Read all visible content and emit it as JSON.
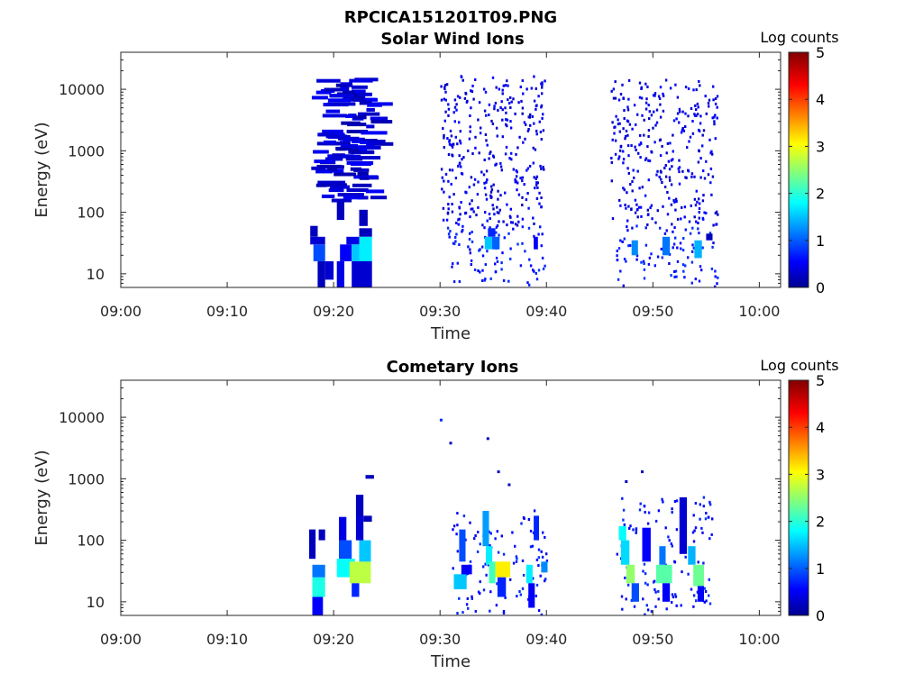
{
  "figure_title": "RPCICA151201T09.PNG",
  "chart_data": [
    {
      "type": "heatmap",
      "title": "Solar Wind Ions",
      "xlabel": "Time",
      "ylabel": "Energy (eV)",
      "x_ticks": [
        "09:00",
        "09:10",
        "09:20",
        "09:30",
        "09:40",
        "09:50",
        "10:00"
      ],
      "xlim_minutes": [
        0,
        62
      ],
      "y_ticks": [
        "10",
        "100",
        "1000",
        "10000"
      ],
      "y_scale": "log",
      "ylim": [
        6,
        40000
      ],
      "colorbar": {
        "label": "Log counts",
        "ticks": [
          "0",
          "1",
          "2",
          "3",
          "4",
          "5"
        ],
        "range": [
          0,
          5
        ],
        "colormap": "jet"
      },
      "grid": false,
      "blocks": [
        {
          "t0": 17.8,
          "t1": 19.2,
          "e0": 30,
          "e1": 40,
          "v": 0.4
        },
        {
          "t0": 17.8,
          "t1": 18.5,
          "e0": 40,
          "e1": 60,
          "v": 0.3
        },
        {
          "t0": 18.1,
          "t1": 19.2,
          "e0": 16,
          "e1": 30,
          "v": 1.0
        },
        {
          "t0": 18.5,
          "t1": 19.2,
          "e0": 6,
          "e1": 16,
          "v": 0.3
        },
        {
          "t0": 19.2,
          "t1": 20.0,
          "e0": 8,
          "e1": 16,
          "v": 0.4
        },
        {
          "t0": 20.3,
          "t1": 21.0,
          "e0": 6,
          "e1": 16,
          "v": 0.5
        },
        {
          "t0": 20.6,
          "t1": 21.7,
          "e0": 16,
          "e1": 30,
          "v": 0.6
        },
        {
          "t0": 21.2,
          "t1": 22.4,
          "e0": 30,
          "e1": 40,
          "v": 0.5
        },
        {
          "t0": 21.7,
          "t1": 23.0,
          "e0": 6,
          "e1": 16,
          "v": 0.4
        },
        {
          "t0": 21.7,
          "t1": 22.4,
          "e0": 16,
          "e1": 30,
          "v": 1.6
        },
        {
          "t0": 22.4,
          "t1": 23.6,
          "e0": 16,
          "e1": 40,
          "v": 1.8
        },
        {
          "t0": 22.4,
          "t1": 23.6,
          "e0": 6,
          "e1": 16,
          "v": 0.4
        },
        {
          "t0": 22.4,
          "t1": 23.6,
          "e0": 40,
          "e1": 55,
          "v": 0.3
        },
        {
          "t0": 22.4,
          "t1": 23.2,
          "e0": 60,
          "e1": 110,
          "v": 0.3
        },
        {
          "t0": 20.3,
          "t1": 21.0,
          "e0": 75,
          "e1": 150,
          "v": 0.3
        },
        {
          "t0": 34.2,
          "t1": 34.9,
          "e0": 25,
          "e1": 40,
          "v": 1.6
        },
        {
          "t0": 34.9,
          "t1": 35.6,
          "e0": 25,
          "e1": 40,
          "v": 1.1
        },
        {
          "t0": 34.5,
          "t1": 35.2,
          "e0": 40,
          "e1": 55,
          "v": 0.8
        },
        {
          "t0": 38.8,
          "t1": 39.2,
          "e0": 25,
          "e1": 40,
          "v": 0.6
        },
        {
          "t0": 48.0,
          "t1": 48.6,
          "e0": 20,
          "e1": 35,
          "v": 1.3
        },
        {
          "t0": 50.9,
          "t1": 51.6,
          "e0": 20,
          "e1": 40,
          "v": 1.2
        },
        {
          "t0": 53.9,
          "t1": 54.6,
          "e0": 18,
          "e1": 35,
          "v": 1.5
        },
        {
          "t0": 55.0,
          "t1": 55.6,
          "e0": 35,
          "e1": 45,
          "v": 0.3
        }
      ],
      "scatter_regions": [
        {
          "t0": 17.8,
          "t1": 23.6,
          "e0": 150,
          "e1": 15000,
          "n": 110,
          "v": 0.2,
          "w": 0.75,
          "dense": true
        },
        {
          "t0": 30.0,
          "t1": 39.8,
          "e0": 60,
          "e1": 16000,
          "n": 330,
          "v": 0.3,
          "w": 0.2,
          "dense": false
        },
        {
          "t0": 46.0,
          "t1": 56.0,
          "e0": 60,
          "e1": 14000,
          "n": 310,
          "v": 0.3,
          "w": 0.2,
          "dense": false
        },
        {
          "t0": 30.5,
          "t1": 39.8,
          "e0": 6,
          "e1": 60,
          "n": 90,
          "v": 0.5,
          "w": 0.2,
          "dense": false
        },
        {
          "t0": 46.5,
          "t1": 56.0,
          "e0": 6,
          "e1": 60,
          "n": 90,
          "v": 0.5,
          "w": 0.2,
          "dense": false
        }
      ]
    },
    {
      "type": "heatmap",
      "title": "Cometary Ions",
      "xlabel": "Time",
      "ylabel": "Energy (eV)",
      "x_ticks": [
        "09:00",
        "09:10",
        "09:20",
        "09:30",
        "09:40",
        "09:50",
        "10:00"
      ],
      "xlim_minutes": [
        0,
        62
      ],
      "y_ticks": [
        "10",
        "100",
        "1000",
        "10000"
      ],
      "y_scale": "log",
      "ylim": [
        6,
        40000
      ],
      "colorbar": {
        "label": "Log counts",
        "ticks": [
          "0",
          "1",
          "2",
          "3",
          "4",
          "5"
        ],
        "range": [
          0,
          5
        ],
        "colormap": "jet"
      },
      "grid": false,
      "blocks": [
        {
          "t0": 18.0,
          "t1": 19.0,
          "e0": 6,
          "e1": 12,
          "v": 0.6
        },
        {
          "t0": 18.0,
          "t1": 19.2,
          "e0": 12,
          "e1": 25,
          "v": 2.0
        },
        {
          "t0": 18.0,
          "t1": 19.2,
          "e0": 25,
          "e1": 40,
          "v": 1.2
        },
        {
          "t0": 17.7,
          "t1": 18.3,
          "e0": 50,
          "e1": 150,
          "v": 0.3
        },
        {
          "t0": 18.6,
          "t1": 19.2,
          "e0": 100,
          "e1": 150,
          "v": 0.3
        },
        {
          "t0": 20.3,
          "t1": 22.0,
          "e0": 25,
          "e1": 50,
          "v": 1.9
        },
        {
          "t0": 20.5,
          "t1": 21.7,
          "e0": 50,
          "e1": 100,
          "v": 1.0
        },
        {
          "t0": 20.5,
          "t1": 21.2,
          "e0": 100,
          "e1": 240,
          "v": 0.5
        },
        {
          "t0": 21.5,
          "t1": 23.5,
          "e0": 20,
          "e1": 45,
          "v": 2.8
        },
        {
          "t0": 21.7,
          "t1": 22.4,
          "e0": 12,
          "e1": 20,
          "v": 0.8
        },
        {
          "t0": 22.4,
          "t1": 23.5,
          "e0": 45,
          "e1": 100,
          "v": 1.6
        },
        {
          "t0": 22.1,
          "t1": 22.8,
          "e0": 100,
          "e1": 250,
          "v": 0.4
        },
        {
          "t0": 22.1,
          "t1": 22.8,
          "e0": 250,
          "e1": 550,
          "v": 0.3
        },
        {
          "t0": 22.8,
          "t1": 23.6,
          "e0": 200,
          "e1": 250,
          "v": 0.3
        },
        {
          "t0": 23.0,
          "t1": 23.8,
          "e0": 1000,
          "e1": 1150,
          "v": 0.3
        },
        {
          "t0": 31.3,
          "t1": 32.5,
          "e0": 16,
          "e1": 28,
          "v": 1.6
        },
        {
          "t0": 31.8,
          "t1": 32.4,
          "e0": 45,
          "e1": 150,
          "v": 1.0
        },
        {
          "t0": 32.0,
          "t1": 33.0,
          "e0": 28,
          "e1": 40,
          "v": 0.6
        },
        {
          "t0": 34.0,
          "t1": 34.6,
          "e0": 80,
          "e1": 300,
          "v": 1.4
        },
        {
          "t0": 34.3,
          "t1": 34.9,
          "e0": 40,
          "e1": 80,
          "v": 1.8
        },
        {
          "t0": 34.6,
          "t1": 35.2,
          "e0": 20,
          "e1": 45,
          "v": 2.2
        },
        {
          "t0": 35.2,
          "t1": 36.6,
          "e0": 25,
          "e1": 45,
          "v": 3.2
        },
        {
          "t0": 35.4,
          "t1": 36.2,
          "e0": 12,
          "e1": 25,
          "v": 0.8
        },
        {
          "t0": 38.1,
          "t1": 38.7,
          "e0": 20,
          "e1": 40,
          "v": 1.8
        },
        {
          "t0": 38.3,
          "t1": 38.9,
          "e0": 8,
          "e1": 20,
          "v": 0.6
        },
        {
          "t0": 38.8,
          "t1": 39.3,
          "e0": 100,
          "e1": 250,
          "v": 0.8
        },
        {
          "t0": 39.5,
          "t1": 40.1,
          "e0": 30,
          "e1": 45,
          "v": 1.3
        },
        {
          "t0": 46.8,
          "t1": 47.5,
          "e0": 100,
          "e1": 170,
          "v": 1.9
        },
        {
          "t0": 47.0,
          "t1": 47.8,
          "e0": 40,
          "e1": 100,
          "v": 1.7
        },
        {
          "t0": 47.5,
          "t1": 48.3,
          "e0": 20,
          "e1": 40,
          "v": 2.6
        },
        {
          "t0": 48.0,
          "t1": 48.7,
          "e0": 10,
          "e1": 20,
          "v": 1.0
        },
        {
          "t0": 49.0,
          "t1": 49.8,
          "e0": 45,
          "e1": 160,
          "v": 0.6
        },
        {
          "t0": 50.3,
          "t1": 51.8,
          "e0": 20,
          "e1": 40,
          "v": 2.3
        },
        {
          "t0": 50.6,
          "t1": 51.2,
          "e0": 40,
          "e1": 80,
          "v": 1.2
        },
        {
          "t0": 50.9,
          "t1": 51.6,
          "e0": 10,
          "e1": 20,
          "v": 0.6
        },
        {
          "t0": 52.5,
          "t1": 53.2,
          "e0": 60,
          "e1": 500,
          "v": 0.4
        },
        {
          "t0": 53.3,
          "t1": 54.0,
          "e0": 40,
          "e1": 80,
          "v": 1.5
        },
        {
          "t0": 53.8,
          "t1": 54.8,
          "e0": 18,
          "e1": 40,
          "v": 2.4
        },
        {
          "t0": 54.2,
          "t1": 54.8,
          "e0": 10,
          "e1": 18,
          "v": 0.6
        }
      ],
      "scatter_regions": [
        {
          "t0": 31.0,
          "t1": 40.0,
          "e0": 6,
          "e1": 300,
          "n": 110,
          "v": 0.5,
          "w": 0.2,
          "dense": false
        },
        {
          "t0": 46.5,
          "t1": 55.5,
          "e0": 6,
          "e1": 500,
          "n": 130,
          "v": 0.5,
          "w": 0.2,
          "dense": false
        }
      ],
      "points": [
        {
          "t": 30.1,
          "e": 9000,
          "v": 0.8
        },
        {
          "t": 31.0,
          "e": 3800,
          "v": 0.3
        },
        {
          "t": 34.5,
          "e": 4500,
          "v": 0.3
        },
        {
          "t": 35.5,
          "e": 1300,
          "v": 0.3
        },
        {
          "t": 36.5,
          "e": 800,
          "v": 0.3
        },
        {
          "t": 49.0,
          "e": 1300,
          "v": 0.3
        },
        {
          "t": 47.5,
          "e": 900,
          "v": 0.3
        }
      ]
    }
  ]
}
